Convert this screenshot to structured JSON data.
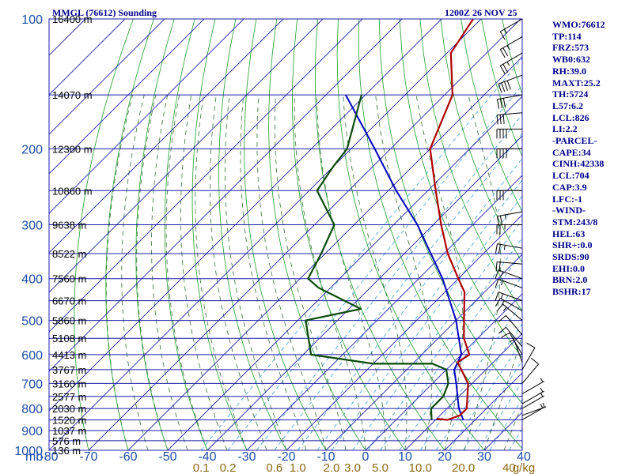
{
  "header": {
    "station": "MMGL (76612) Sounding",
    "time": "1200Z 26 NOV 25"
  },
  "indices": [
    "WMO:76612",
    "TP:114",
    "FRZ:573",
    "WB0:632",
    "RH:39.0",
    "MAXT:25.2",
    "TH:5724",
    "L57:6.2",
    "LCL:826",
    "LI:2.2",
    "-PARCEL-",
    "CAPE:34",
    "CINH:42338",
    "LCL:704",
    "CAP:3.9",
    "LFC:-1",
    "-WIND-",
    "STM:243/8",
    "HEL:63",
    "SHR+:0.0",
    "SRDS:90",
    "EHI:0.0",
    "BRN:2.0",
    "BSHR:17"
  ],
  "colors": {
    "grid": "#1c1ca8",
    "isotherm": "#1e9e28",
    "dry_adiabat": "#1e9e28",
    "moist_adiabat": "#3c6e3c",
    "mixing_ratio": "#3aa0d8",
    "temperature": "#b00000",
    "dewpoint": "#0a4a0a",
    "parcel": "#0000c0",
    "wind": "#000000"
  },
  "chart_data": {
    "type": "skew-t",
    "pressure_axis_label": "mb",
    "pressure_levels": [
      100,
      200,
      300,
      400,
      500,
      600,
      700,
      800,
      900,
      1000
    ],
    "pressure_labels": [
      "100",
      "200",
      "300",
      "400",
      "500",
      "600",
      "700",
      "800",
      "900",
      "1000"
    ],
    "pressure_grid": [
      100,
      150,
      200,
      250,
      300,
      350,
      400,
      450,
      500,
      550,
      600,
      650,
      700,
      750,
      800,
      850,
      900,
      950,
      1000
    ],
    "temperature_ticks": [
      -80,
      -70,
      -60,
      -50,
      -40,
      -30,
      -20,
      -10,
      0,
      10,
      20,
      30,
      40
    ],
    "temperature_labels": [
      "-80",
      "-70",
      "-60",
      "-50",
      "-40",
      "-30",
      "-20",
      "-10",
      "0",
      "10",
      "20",
      "30",
      "40"
    ],
    "heights": [
      {
        "p": 100,
        "label": "16400 m"
      },
      {
        "p": 150,
        "label": "14070 m"
      },
      {
        "p": 200,
        "label": "12300 m"
      },
      {
        "p": 250,
        "label": "10860 m"
      },
      {
        "p": 300,
        "label": "9638 m"
      },
      {
        "p": 350,
        "label": "8522 m"
      },
      {
        "p": 400,
        "label": "7560 m"
      },
      {
        "p": 450,
        "label": "6670 m"
      },
      {
        "p": 500,
        "label": "5860 m"
      },
      {
        "p": 550,
        "label": "5108 m"
      },
      {
        "p": 600,
        "label": "4413 m"
      },
      {
        "p": 650,
        "label": "3767 m"
      },
      {
        "p": 700,
        "label": "3160 m"
      },
      {
        "p": 750,
        "label": "2577 m"
      },
      {
        "p": 800,
        "label": "2030 m"
      },
      {
        "p": 850,
        "label": "1520 m"
      },
      {
        "p": 900,
        "label": "1037 m"
      },
      {
        "p": 950,
        "label": "576 m"
      },
      {
        "p": 1000,
        "label": "136 m"
      }
    ],
    "mixing_ratio_labels": [
      {
        "w": 0.1,
        "label": "0.1"
      },
      {
        "w": 0.2,
        "label": "0.2"
      },
      {
        "w": 0.6,
        "label": "0.6"
      },
      {
        "w": 1.0,
        "label": "1.0"
      },
      {
        "w": 2.0,
        "label": "2.0"
      },
      {
        "w": 3.0,
        "label": "3.0"
      },
      {
        "w": 5.0,
        "label": "5.0"
      },
      {
        "w": 10.0,
        "label": "10.0"
      },
      {
        "w": 20.0,
        "label": "20.0"
      },
      {
        "w": 40.0,
        "label": "40"
      }
    ],
    "mixing_ratio_unit": "g/kg",
    "temperature_profile": [
      {
        "p": 100,
        "t": -82
      },
      {
        "p": 120,
        "t": -79
      },
      {
        "p": 150,
        "t": -68
      },
      {
        "p": 200,
        "t": -60
      },
      {
        "p": 250,
        "t": -48
      },
      {
        "p": 300,
        "t": -38
      },
      {
        "p": 350,
        "t": -29
      },
      {
        "p": 400,
        "t": -20
      },
      {
        "p": 430,
        "t": -15
      },
      {
        "p": 500,
        "t": -8
      },
      {
        "p": 550,
        "t": -3.5
      },
      {
        "p": 600,
        "t": 2
      },
      {
        "p": 625,
        "t": 1
      },
      {
        "p": 700,
        "t": 9
      },
      {
        "p": 800,
        "t": 15
      },
      {
        "p": 830,
        "t": 15
      },
      {
        "p": 850,
        "t": 13
      },
      {
        "p": 845,
        "t": 10
      }
    ],
    "dewpoint_profile": [
      {
        "p": 150,
        "t": -91
      },
      {
        "p": 200,
        "t": -81
      },
      {
        "p": 220,
        "t": -80
      },
      {
        "p": 250,
        "t": -78
      },
      {
        "p": 300,
        "t": -65
      },
      {
        "p": 350,
        "t": -61
      },
      {
        "p": 400,
        "t": -58
      },
      {
        "p": 420,
        "t": -53
      },
      {
        "p": 470,
        "t": -37
      },
      {
        "p": 500,
        "t": -48
      },
      {
        "p": 600,
        "t": -38
      },
      {
        "p": 630,
        "t": -20
      },
      {
        "p": 630,
        "t": -5
      },
      {
        "p": 650,
        "t": 0
      },
      {
        "p": 700,
        "t": 4
      },
      {
        "p": 750,
        "t": 6
      },
      {
        "p": 800,
        "t": 6
      },
      {
        "p": 850,
        "t": 9
      }
    ],
    "parcel_profile": [
      {
        "p": 150,
        "t": -95
      },
      {
        "p": 200,
        "t": -74
      },
      {
        "p": 250,
        "t": -58
      },
      {
        "p": 300,
        "t": -44
      },
      {
        "p": 400,
        "t": -24
      },
      {
        "p": 500,
        "t": -10
      },
      {
        "p": 600,
        "t": 0
      },
      {
        "p": 650,
        "t": 2
      },
      {
        "p": 700,
        "t": 6
      },
      {
        "p": 800,
        "t": 13
      },
      {
        "p": 850,
        "t": 17
      }
    ],
    "wind_barbs": [
      {
        "p": 100,
        "dir": 60,
        "kt": 15
      },
      {
        "p": 110,
        "dir": 60,
        "kt": 25
      },
      {
        "p": 120,
        "dir": 60,
        "kt": 25
      },
      {
        "p": 135,
        "dir": 70,
        "kt": 40
      },
      {
        "p": 150,
        "dir": 80,
        "kt": 30
      },
      {
        "p": 165,
        "dir": 85,
        "kt": 30
      },
      {
        "p": 180,
        "dir": 90,
        "kt": 40
      },
      {
        "p": 200,
        "dir": 90,
        "kt": 40
      },
      {
        "p": 250,
        "dir": 90,
        "kt": 30
      },
      {
        "p": 280,
        "dir": 80,
        "kt": 25
      },
      {
        "p": 300,
        "dir": 90,
        "kt": 25
      },
      {
        "p": 340,
        "dir": 100,
        "kt": 25
      },
      {
        "p": 370,
        "dir": 95,
        "kt": 20
      },
      {
        "p": 400,
        "dir": 110,
        "kt": 15
      },
      {
        "p": 420,
        "dir": 110,
        "kt": 15
      },
      {
        "p": 450,
        "dir": 110,
        "kt": 15
      },
      {
        "p": 475,
        "dir": 120,
        "kt": 15
      },
      {
        "p": 500,
        "dir": 130,
        "kt": 15
      },
      {
        "p": 540,
        "dir": 140,
        "kt": 10
      },
      {
        "p": 575,
        "dir": 140,
        "kt": 10
      },
      {
        "p": 600,
        "dir": 150,
        "kt": 10
      },
      {
        "p": 625,
        "dir": 160,
        "kt": 5
      },
      {
        "p": 650,
        "dir": 210,
        "kt": 10
      },
      {
        "p": 700,
        "dir": 220,
        "kt": 10
      },
      {
        "p": 740,
        "dir": 240,
        "kt": 5
      },
      {
        "p": 780,
        "dir": 240,
        "kt": 5
      },
      {
        "p": 800,
        "dir": 240,
        "kt": 5
      },
      {
        "p": 830,
        "dir": 250,
        "kt": 5
      },
      {
        "p": 850,
        "dir": 240,
        "kt": 5
      }
    ]
  }
}
